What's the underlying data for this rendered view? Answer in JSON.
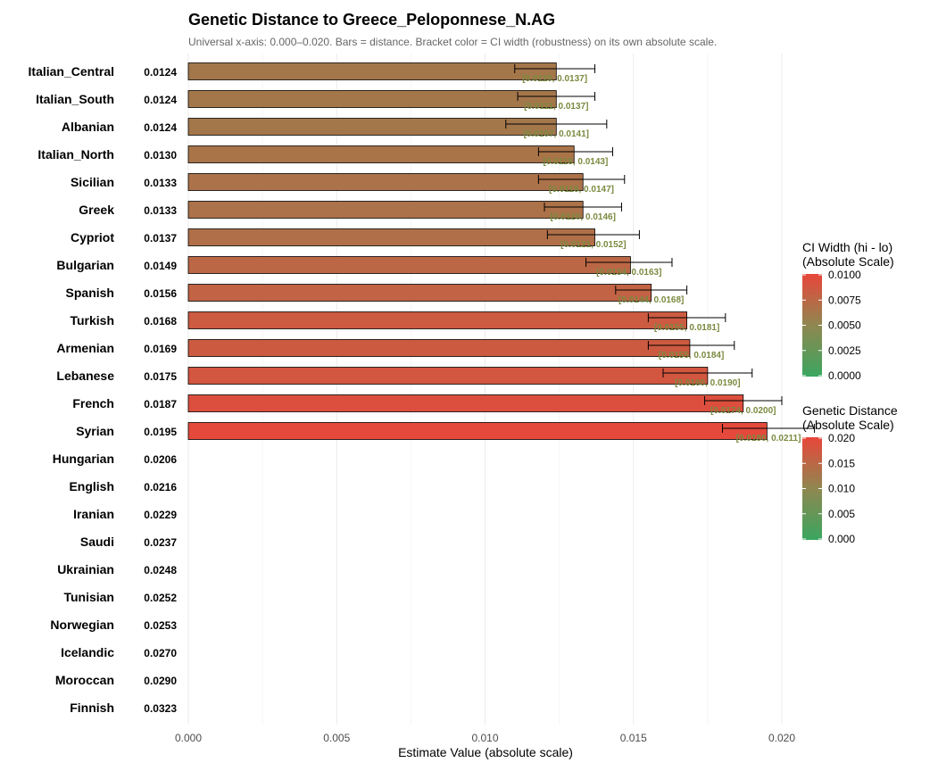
{
  "chart_data": {
    "type": "bar",
    "orientation": "horizontal",
    "title": "Genetic Distance to Greece_Peloponnese_N.AG",
    "subtitle": "Universal x-axis: 0.000–0.020. Bars = distance. Bracket color = CI width (robustness) on its own absolute scale.",
    "xlabel": "Estimate Value (absolute scale)",
    "xlim": [
      0,
      0.02
    ],
    "x_ticks": [
      "0.000",
      "0.005",
      "0.010",
      "0.015",
      "0.020"
    ],
    "grid": true,
    "rows": [
      {
        "name": "Italian_Central",
        "value_label": "0.0124",
        "value": 0.0124,
        "ci_lo": 0.011,
        "ci_hi": 0.0137,
        "ci_label": "[0.0110, 0.0137]"
      },
      {
        "name": "Italian_South",
        "value_label": "0.0124",
        "value": 0.0124,
        "ci_lo": 0.0111,
        "ci_hi": 0.0137,
        "ci_label": "[0.0111, 0.0137]"
      },
      {
        "name": "Albanian",
        "value_label": "0.0124",
        "value": 0.0124,
        "ci_lo": 0.0107,
        "ci_hi": 0.0141,
        "ci_label": "[0.0107, 0.0141]"
      },
      {
        "name": "Italian_North",
        "value_label": "0.0130",
        "value": 0.013,
        "ci_lo": 0.0118,
        "ci_hi": 0.0143,
        "ci_label": "[0.0118, 0.0143]"
      },
      {
        "name": "Sicilian",
        "value_label": "0.0133",
        "value": 0.0133,
        "ci_lo": 0.0118,
        "ci_hi": 0.0147,
        "ci_label": "[0.0118, 0.0147]"
      },
      {
        "name": "Greek",
        "value_label": "0.0133",
        "value": 0.0133,
        "ci_lo": 0.012,
        "ci_hi": 0.0146,
        "ci_label": "[0.0120, 0.0146]"
      },
      {
        "name": "Cypriot",
        "value_label": "0.0137",
        "value": 0.0137,
        "ci_lo": 0.0121,
        "ci_hi": 0.0152,
        "ci_label": "[0.0121, 0.0152]"
      },
      {
        "name": "Bulgarian",
        "value_label": "0.0149",
        "value": 0.0149,
        "ci_lo": 0.0134,
        "ci_hi": 0.0163,
        "ci_label": "[0.0134, 0.0163]"
      },
      {
        "name": "Spanish",
        "value_label": "0.0156",
        "value": 0.0156,
        "ci_lo": 0.0144,
        "ci_hi": 0.0168,
        "ci_label": "[0.0144, 0.0168]"
      },
      {
        "name": "Turkish",
        "value_label": "0.0168",
        "value": 0.0168,
        "ci_lo": 0.0155,
        "ci_hi": 0.0181,
        "ci_label": "[0.0155, 0.0181]"
      },
      {
        "name": "Armenian",
        "value_label": "0.0169",
        "value": 0.0169,
        "ci_lo": 0.0155,
        "ci_hi": 0.0184,
        "ci_label": "[0.0155, 0.0184]"
      },
      {
        "name": "Lebanese",
        "value_label": "0.0175",
        "value": 0.0175,
        "ci_lo": 0.016,
        "ci_hi": 0.019,
        "ci_label": "[0.0160, 0.0190]"
      },
      {
        "name": "French",
        "value_label": "0.0187",
        "value": 0.0187,
        "ci_lo": 0.0174,
        "ci_hi": 0.02,
        "ci_label": "[0.0174, 0.0200]"
      },
      {
        "name": "Syrian",
        "value_label": "0.0195",
        "value": 0.0195,
        "ci_lo": 0.018,
        "ci_hi": 0.0211,
        "ci_label": "[0.0180, 0.0211]"
      },
      {
        "name": "Hungarian",
        "value_label": "0.0206",
        "value": 0.0206
      },
      {
        "name": "English",
        "value_label": "0.0216",
        "value": 0.0216
      },
      {
        "name": "Iranian",
        "value_label": "0.0229",
        "value": 0.0229
      },
      {
        "name": "Saudi",
        "value_label": "0.0237",
        "value": 0.0237
      },
      {
        "name": "Ukrainian",
        "value_label": "0.0248",
        "value": 0.0248
      },
      {
        "name": "Tunisian",
        "value_label": "0.0252",
        "value": 0.0252
      },
      {
        "name": "Norwegian",
        "value_label": "0.0253",
        "value": 0.0253
      },
      {
        "name": "Icelandic",
        "value_label": "0.0270",
        "value": 0.027
      },
      {
        "name": "Moroccan",
        "value_label": "0.0290",
        "value": 0.029
      },
      {
        "name": "Finnish",
        "value_label": "0.0323",
        "value": 0.0323
      }
    ],
    "legends": [
      {
        "title_lines": [
          "CI Width (hi - lo)",
          "(Absolute Scale)"
        ],
        "ticks": [
          "0.0100",
          "0.0075",
          "0.0050",
          "0.0025",
          "0.0000"
        ],
        "min": 0,
        "max": 0.01
      },
      {
        "title_lines": [
          "Genetic Distance",
          "(Absolute Scale)"
        ],
        "ticks": [
          "0.020",
          "0.015",
          "0.010",
          "0.005",
          "0.000"
        ],
        "min": 0,
        "max": 0.02
      }
    ],
    "legend_placement": "right",
    "colors": {
      "low": "#3aa660",
      "mid": "#8f8750",
      "high": "#e8463a"
    }
  }
}
